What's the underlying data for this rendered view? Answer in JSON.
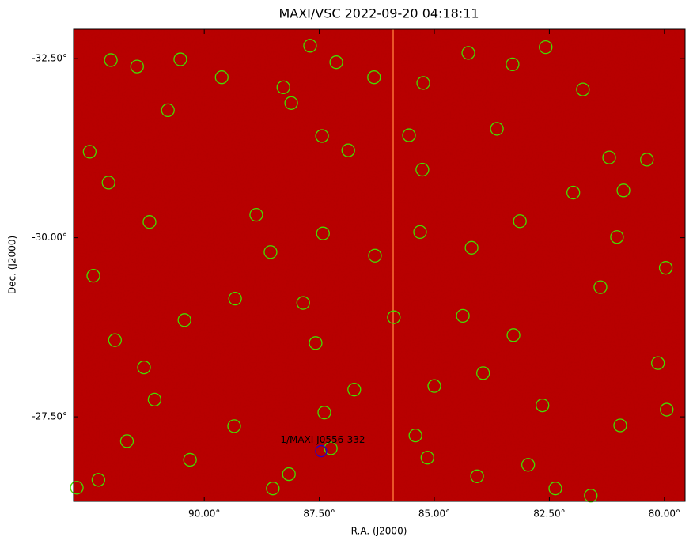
{
  "chart_data": {
    "type": "scatter",
    "title": "MAXI/VSC 2022-09-20 04:18:11",
    "x_label": "R.A. (J2000)",
    "y_label": "Dec. (J2000)",
    "xlim": [
      92.84,
      79.55
    ],
    "ylim": [
      -26.32,
      -32.91
    ],
    "xticks": [
      {
        "value": 90,
        "label": "90.00°"
      },
      {
        "value": 87.5,
        "label": "87.50°"
      },
      {
        "value": 85,
        "label": "85.00°"
      },
      {
        "value": 82.5,
        "label": "82.50°"
      },
      {
        "value": 80,
        "label": "80.00°"
      }
    ],
    "yticks": [
      {
        "value": -32.5,
        "label": "-32.50°"
      },
      {
        "value": -30,
        "label": "-30.00°"
      },
      {
        "value": -27.5,
        "label": "-27.50°"
      }
    ],
    "series": [
      {
        "name": "sources",
        "color": "#44dd00",
        "x": [
          92.03,
          91.46,
          90.52,
          89.62,
          88.28,
          87.7,
          87.13,
          86.31,
          85.24,
          84.26,
          83.3,
          82.58,
          81.77,
          90.79,
          88.11,
          87.44,
          85.55,
          83.64,
          92.49,
          86.87,
          81.2,
          80.38,
          85.26,
          81.98,
          80.89,
          92.08,
          88.87,
          83.14,
          91.19,
          87.42,
          85.31,
          81.03,
          88.56,
          86.29,
          84.19,
          79.97,
          92.41,
          89.33,
          87.85,
          81.39,
          90.43,
          85.88,
          84.38,
          83.28,
          91.94,
          91.31,
          87.58,
          83.94,
          80.14,
          85.0,
          86.74,
          91.08,
          87.39,
          82.65,
          79.95,
          89.35,
          80.96,
          91.68,
          85.41,
          87.25,
          90.31,
          85.15,
          82.96,
          92.3,
          88.16,
          84.07,
          92.77,
          88.51,
          82.37,
          81.6
        ],
        "values": [
          -32.48,
          -32.39,
          -32.49,
          -32.24,
          -32.1,
          -32.68,
          -32.45,
          -32.24,
          -32.16,
          -32.58,
          -32.42,
          -32.66,
          -32.07,
          -31.78,
          -31.88,
          -31.42,
          -31.43,
          -31.52,
          -31.2,
          -31.22,
          -31.12,
          -31.09,
          -30.95,
          -30.63,
          -30.66,
          -30.77,
          -30.32,
          -30.23,
          -30.22,
          -30.06,
          -30.08,
          -30.01,
          -29.8,
          -29.75,
          -29.86,
          -29.58,
          -29.47,
          -29.15,
          -29.09,
          -29.31,
          -28.85,
          -28.89,
          -28.91,
          -28.64,
          -28.57,
          -28.19,
          -28.53,
          -28.11,
          -28.25,
          -27.93,
          -27.88,
          -27.74,
          -27.56,
          -27.66,
          -27.6,
          -27.37,
          -27.38,
          -27.16,
          -27.24,
          -27.06,
          -26.9,
          -26.93,
          -26.83,
          -26.62,
          -26.7,
          -26.67,
          -26.51,
          -26.5,
          -26.5,
          -26.4
        ]
      }
    ],
    "annotation": {
      "text": "1/MAXI J0556-332",
      "x": 87.46,
      "y": -27.02,
      "color": "#2200cc"
    }
  }
}
